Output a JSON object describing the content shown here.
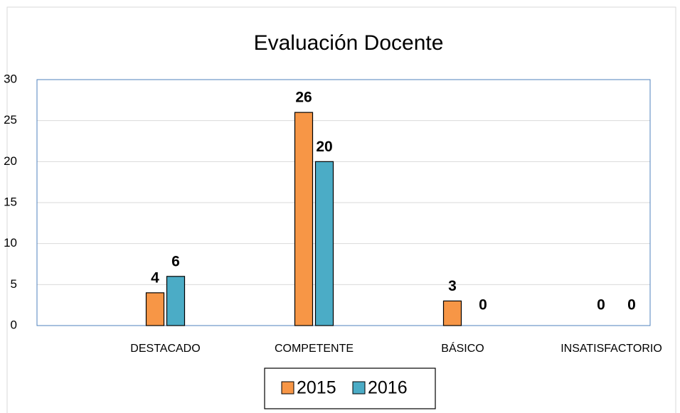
{
  "chart_data": {
    "type": "bar",
    "title": "Evaluación Docente",
    "categories": [
      "DESTACADO",
      "COMPETENTE",
      "BÁSICO",
      "INSATISFACTORIO"
    ],
    "series": [
      {
        "name": "2015",
        "color": "#f79646",
        "values": [
          4,
          26,
          3,
          0
        ]
      },
      {
        "name": "2016",
        "color": "#4bacc6",
        "values": [
          6,
          20,
          0,
          0
        ]
      }
    ],
    "ylim": [
      0,
      30
    ],
    "yticks": [
      0,
      5,
      10,
      15,
      20,
      25,
      30
    ],
    "grid": true,
    "legend": "bottom"
  }
}
